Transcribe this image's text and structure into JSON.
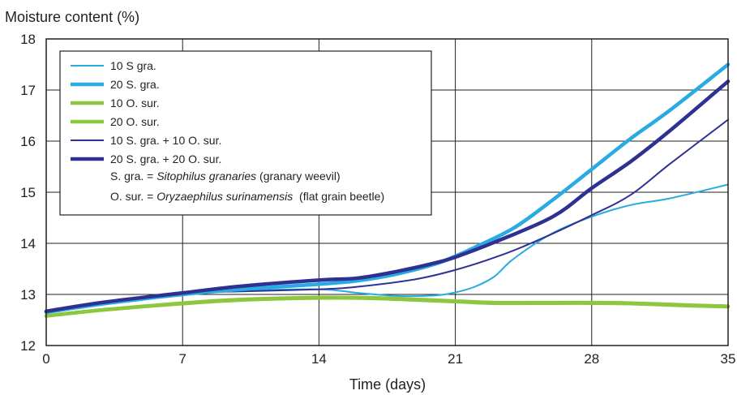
{
  "chart_data": {
    "type": "line",
    "ylabel": "Moisture content (%)",
    "xlabel": "Time (days)",
    "xlim": [
      0,
      35
    ],
    "ylim": [
      12,
      18
    ],
    "xticks": [
      0,
      7,
      14,
      21,
      28,
      35
    ],
    "yticks": [
      12,
      13,
      14,
      15,
      16,
      17,
      18
    ],
    "xtick_labels": [
      "0",
      "7",
      "14",
      "21",
      "28",
      "35"
    ],
    "ytick_labels": [
      "12",
      "13",
      "14",
      "15",
      "16",
      "17",
      "18"
    ],
    "grid": true,
    "legend_position": "top-left",
    "series": [
      {
        "name": "10 S gra.",
        "color": "#29abe2",
        "style": "thin",
        "x": [
          0,
          3,
          7,
          10,
          14,
          16,
          18,
          20,
          21,
          22,
          23,
          24,
          26,
          28,
          30,
          32,
          35
        ],
        "y": [
          12.65,
          12.82,
          13.0,
          13.07,
          13.1,
          13.03,
          12.97,
          12.98,
          13.04,
          13.15,
          13.35,
          13.7,
          14.2,
          14.52,
          14.75,
          14.88,
          15.15
        ]
      },
      {
        "name": "20 S. gra.",
        "color": "#29abe2",
        "style": "thick",
        "x": [
          0,
          3,
          7,
          10,
          14,
          16,
          18,
          20,
          21,
          22,
          24,
          26,
          28,
          30,
          32,
          35
        ],
        "y": [
          12.65,
          12.82,
          13.0,
          13.1,
          13.2,
          13.27,
          13.4,
          13.6,
          13.75,
          13.92,
          14.3,
          14.85,
          15.45,
          16.05,
          16.6,
          17.5
        ]
      },
      {
        "name": "10 O. sur.",
        "color": "#8dc63f",
        "style": "thick",
        "x": [
          0,
          3,
          7,
          10,
          14,
          17,
          21,
          23,
          26,
          28,
          30,
          33,
          35
        ],
        "y": [
          12.58,
          12.7,
          12.83,
          12.9,
          12.94,
          12.93,
          12.87,
          12.84,
          12.84,
          12.84,
          12.83,
          12.79,
          12.77
        ]
      },
      {
        "name": "20 O. sur.",
        "color": "#8dc63f",
        "style": "thick",
        "x": [
          0,
          3,
          7,
          10,
          14,
          17,
          21,
          23,
          26,
          28,
          30,
          33,
          35
        ],
        "y": [
          12.58,
          12.7,
          12.82,
          12.89,
          12.93,
          12.92,
          12.86,
          12.83,
          12.83,
          12.83,
          12.82,
          12.78,
          12.76
        ]
      },
      {
        "name": "10 S. gra. + 10 O. sur.",
        "color": "#2e3192",
        "style": "thin",
        "x": [
          0,
          3,
          7,
          10,
          14,
          16,
          19,
          21,
          23,
          25,
          28,
          30,
          32,
          35
        ],
        "y": [
          12.67,
          12.84,
          13.02,
          13.06,
          13.1,
          13.15,
          13.3,
          13.48,
          13.72,
          14.02,
          14.55,
          14.95,
          15.55,
          16.42
        ]
      },
      {
        "name": "20 S. gra. + 20 O. sur.",
        "color": "#2e3192",
        "style": "thick",
        "x": [
          0,
          3,
          7,
          10,
          14,
          16,
          18,
          20,
          21,
          23,
          26,
          28,
          30,
          32,
          35
        ],
        "y": [
          12.67,
          12.85,
          13.03,
          13.16,
          13.28,
          13.32,
          13.45,
          13.62,
          13.73,
          14.02,
          14.52,
          15.08,
          15.6,
          16.2,
          17.17
        ]
      }
    ],
    "annotations": [
      {
        "abbr": "S. gra. = ",
        "species": "Sitophilus granaries",
        "common": " (granary weevil)"
      },
      {
        "abbr": "O. sur. = ",
        "species": "Oryzaephilus surinamensis",
        "common": "  (flat grain beetle)"
      }
    ]
  }
}
